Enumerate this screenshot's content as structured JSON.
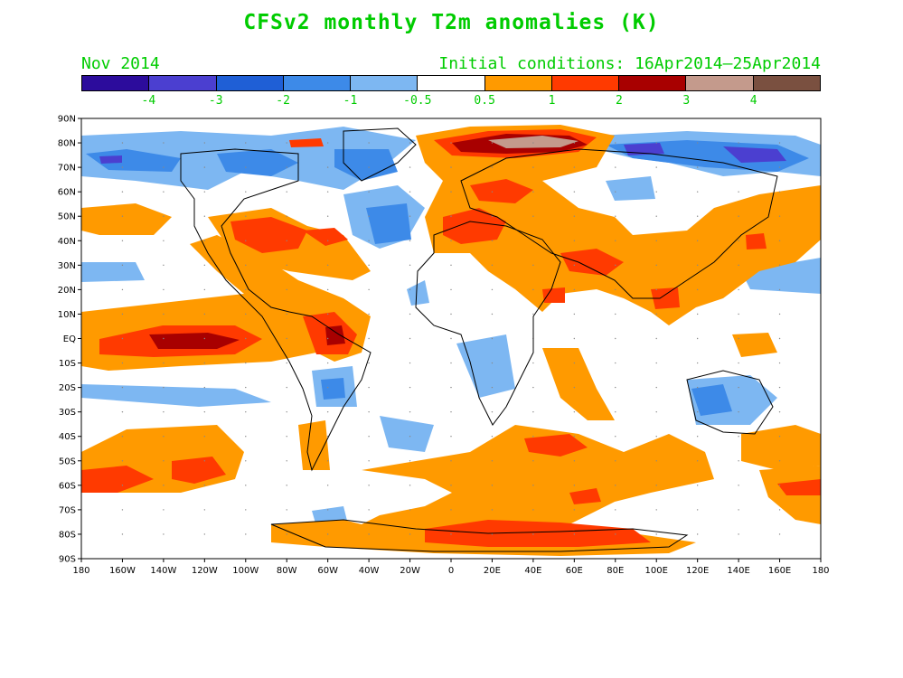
{
  "title": "CFSv2 monthly T2m anomalies (K)",
  "month": "Nov 2014",
  "initial_conditions": "Initial conditions: 16Apr2014–25Apr2014",
  "colorbar": {
    "colors": [
      "#2c0c9c",
      "#4b3fd0",
      "#1f5fd6",
      "#3d8ae8",
      "#7db7f2",
      "#ffffff",
      "#ff9a00",
      "#ff3a00",
      "#a80000",
      "#c49a8c",
      "#7a5040"
    ],
    "labels": [
      "-4",
      "-3",
      "-2",
      "-1",
      "-0.5",
      "0.5",
      "1",
      "2",
      "3",
      "4"
    ]
  },
  "lat_labels": [
    "90N",
    "80N",
    "70N",
    "60N",
    "50N",
    "40N",
    "30N",
    "20N",
    "10N",
    "EQ",
    "10S",
    "20S",
    "30S",
    "40S",
    "50S",
    "60S",
    "70S",
    "80S",
    "90S"
  ],
  "lon_labels": [
    "180",
    "160W",
    "140W",
    "120W",
    "100W",
    "80W",
    "60W",
    "40W",
    "20W",
    "0",
    "20E",
    "40E",
    "60E",
    "80E",
    "100E",
    "120E",
    "140E",
    "160E",
    "180"
  ],
  "colors": {
    "title": "#00cc00",
    "light_blue": "#7db7f2",
    "blue": "#3d8ae8",
    "mid_blue": "#1f5fd6",
    "dark_blue": "#4b3fd0",
    "orange": "#ff9a00",
    "red": "#ff3a00",
    "dark_red": "#a80000",
    "brown": "#c49a8c",
    "dark_brown": "#7a5040"
  }
}
